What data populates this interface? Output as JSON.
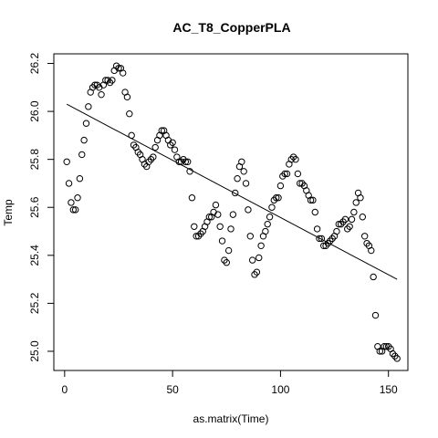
{
  "chart_data": {
    "type": "scatter",
    "title": "AC_T8_CopperPLA",
    "xlabel": "as.matrix(Time)",
    "ylabel": "Temp",
    "xlim": [
      -5,
      159
    ],
    "ylim": [
      24.92,
      26.24
    ],
    "x_ticks": [
      0,
      50,
      100,
      150
    ],
    "y_ticks": [
      25.0,
      25.2,
      25.4,
      25.6,
      25.8,
      26.0,
      26.2
    ],
    "y_tick_labels": [
      "25.0",
      "25.2",
      "25.4",
      "25.6",
      "25.8",
      "26.0",
      "26.2"
    ],
    "grid": false,
    "fit_line": {
      "x": [
        1,
        154
      ],
      "y": [
        26.03,
        25.3
      ]
    },
    "points": {
      "x": [
        1,
        2,
        3,
        4,
        5,
        6,
        7,
        8,
        9,
        10,
        11,
        12,
        13,
        14,
        15,
        16,
        17,
        18,
        19,
        20,
        21,
        22,
        23,
        24,
        25,
        26,
        27,
        28,
        29,
        30,
        31,
        32,
        33,
        34,
        35,
        36,
        37,
        38,
        39,
        40,
        41,
        42,
        43,
        44,
        45,
        46,
        47,
        48,
        49,
        50,
        51,
        52,
        53,
        54,
        55,
        56,
        57,
        58,
        59,
        60,
        61,
        62,
        63,
        64,
        65,
        66,
        67,
        68,
        69,
        70,
        71,
        72,
        73,
        74,
        75,
        76,
        77,
        78,
        79,
        80,
        81,
        82,
        83,
        84,
        85,
        86,
        87,
        88,
        89,
        90,
        91,
        92,
        93,
        94,
        95,
        96,
        97,
        98,
        99,
        100,
        101,
        102,
        103,
        104,
        105,
        106,
        107,
        108,
        109,
        110,
        111,
        112,
        113,
        114,
        115,
        116,
        117,
        118,
        119,
        120,
        121,
        122,
        123,
        124,
        125,
        126,
        127,
        128,
        129,
        130,
        131,
        132,
        133,
        134,
        135,
        136,
        137,
        138,
        139,
        140,
        141,
        142,
        143,
        144,
        145,
        146,
        147,
        148,
        149,
        150,
        151,
        152,
        153,
        154
      ],
      "y": [
        25.79,
        25.7,
        25.62,
        25.59,
        25.59,
        25.64,
        25.72,
        25.82,
        25.88,
        25.95,
        26.02,
        26.08,
        26.1,
        26.11,
        26.11,
        26.1,
        26.07,
        26.11,
        26.13,
        26.13,
        26.12,
        26.13,
        26.17,
        26.19,
        26.18,
        26.18,
        26.16,
        26.08,
        26.06,
        25.99,
        25.9,
        25.86,
        25.85,
        25.83,
        25.82,
        25.8,
        25.78,
        25.77,
        25.79,
        25.8,
        25.81,
        25.85,
        25.88,
        25.9,
        25.92,
        25.92,
        25.9,
        25.88,
        25.86,
        25.87,
        25.84,
        25.81,
        25.79,
        25.79,
        25.8,
        25.79,
        25.79,
        25.75,
        25.64,
        25.52,
        25.48,
        25.48,
        25.49,
        25.5,
        25.52,
        25.54,
        25.56,
        25.56,
        25.58,
        25.61,
        25.57,
        25.52,
        25.46,
        25.38,
        25.37,
        25.42,
        25.51,
        25.57,
        25.66,
        25.72,
        25.77,
        25.79,
        25.75,
        25.7,
        25.59,
        25.48,
        25.38,
        25.32,
        25.33,
        25.39,
        25.44,
        25.48,
        25.5,
        25.53,
        25.56,
        25.6,
        25.63,
        25.64,
        25.64,
        25.69,
        25.73,
        25.74,
        25.74,
        25.78,
        25.8,
        25.81,
        25.8,
        25.74,
        25.7,
        25.7,
        25.69,
        25.67,
        25.65,
        25.63,
        25.63,
        25.58,
        25.51,
        25.47,
        25.47,
        25.44,
        25.44,
        25.45,
        25.46,
        25.47,
        25.48,
        25.5,
        25.53,
        25.53,
        25.54,
        25.55,
        25.51,
        25.52,
        25.55,
        25.58,
        25.62,
        25.66,
        25.64,
        25.56,
        25.48,
        25.45,
        25.44,
        25.42,
        25.31,
        25.15,
        25.02,
        25.0,
        25.0,
        25.02,
        25.02,
        25.02,
        25.01,
        24.99,
        24.98,
        24.97
      ]
    }
  }
}
